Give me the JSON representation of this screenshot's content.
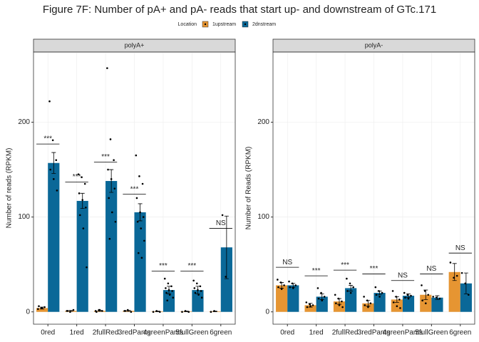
{
  "figure": {
    "title": "Figure 7F: Number of pA+ and pA- reads that start up- and downstream of GTc.171",
    "legend_title": "Location"
  },
  "chart_data": [
    {
      "type": "bar",
      "title": "polyA+",
      "y_label": "Number of reads (RPKM)",
      "categories": [
        "0red",
        "1red",
        "2fullRed",
        "3redPants",
        "4greenPants",
        "5fullGreen",
        "6green"
      ],
      "ylim": [
        -13,
        274
      ],
      "yticks": [
        0,
        100,
        200
      ],
      "grid": true,
      "series": [
        {
          "name": "1upstream",
          "color": "#e69532",
          "values": [
            4,
            1,
            1,
            1,
            0.5,
            0.5,
            0.5
          ],
          "errors": [
            1,
            0.5,
            0.5,
            0.5,
            0.3,
            0.3,
            0.3
          ],
          "points": [
            [
              3,
              4,
              5,
              6,
              4
            ],
            [
              1,
              0,
              2,
              1
            ],
            [
              1,
              2,
              1,
              0,
              2
            ],
            [
              1,
              2,
              0,
              1
            ],
            [
              0,
              1,
              0
            ],
            [
              0,
              1,
              0
            ],
            [
              0,
              1
            ]
          ]
        },
        {
          "name": "2dnstream",
          "color": "#0a6898",
          "values": [
            157,
            117,
            138,
            105,
            23,
            23,
            68
          ],
          "errors": [
            11,
            8,
            12,
            9,
            4,
            4,
            33
          ],
          "points": [
            [
              222,
              181,
              160,
              150,
              140,
              128
            ],
            [
              145,
              142,
              135,
              125,
              118,
              110,
              102,
              88,
              47
            ],
            [
              257,
              182,
              160,
              150,
              140,
              130,
              120,
              105,
              95,
              77
            ],
            [
              165,
              143,
              135,
              120,
              105,
              100,
              95,
              88,
              75,
              62,
              57
            ],
            [
              35,
              30,
              27,
              25,
              23,
              22,
              20,
              18,
              15,
              12
            ],
            [
              33,
              30,
              27,
              25,
              23,
              22,
              20,
              18,
              15
            ],
            [
              102,
              37
            ]
          ]
        }
      ],
      "significance": {
        "labels": [
          "***",
          "***",
          "***",
          "***",
          "***",
          "***",
          "NS"
        ],
        "heights": [
          177,
          137,
          158,
          124,
          43,
          43,
          88
        ]
      }
    },
    {
      "type": "bar",
      "title": "polyA-",
      "y_label": "Number of Reads (RPKM)",
      "categories": [
        "0red",
        "1red",
        "2fullRed",
        "3redPants",
        "4greenPants",
        "5fullGreen",
        "6green"
      ],
      "ylim": [
        -13,
        274
      ],
      "yticks": [
        0,
        100,
        200
      ],
      "grid": true,
      "series": [
        {
          "name": "1upstream",
          "color": "#e69532",
          "values": [
            28,
            7,
            11,
            9,
            13,
            18,
            42
          ],
          "errors": [
            3,
            2,
            3,
            3,
            3,
            5,
            9
          ],
          "points": [
            [
              34,
              31,
              28,
              26,
              24
            ],
            [
              10,
              8,
              7,
              5,
              6
            ],
            [
              18,
              14,
              11,
              9,
              7,
              5
            ],
            [
              16,
              12,
              9,
              7,
              5
            ],
            [
              22,
              16,
              13,
              10,
              6,
              4
            ],
            [
              28,
              22,
              18,
              12,
              9
            ],
            [
              52,
              36,
              38
            ]
          ]
        },
        {
          "name": "2dnstream",
          "color": "#0a6898",
          "values": [
            28,
            16,
            25,
            20,
            17,
            15,
            30
          ],
          "errors": [
            2,
            3,
            3,
            2,
            2,
            2,
            11
          ],
          "points": [
            [
              32,
              30,
              28,
              26,
              25
            ],
            [
              25,
              20,
              16,
              14,
              12
            ],
            [
              35,
              30,
              26,
              22,
              20
            ],
            [
              26,
              22,
              20,
              18,
              16
            ],
            [
              20,
              18,
              17,
              15,
              14
            ],
            [
              16,
              15,
              14
            ],
            [
              41,
              30,
              18
            ]
          ]
        }
      ],
      "significance": {
        "labels": [
          "NS",
          "***",
          "***",
          "***",
          "NS",
          "NS",
          "NS"
        ],
        "heights": [
          47,
          38,
          44,
          40,
          33,
          40,
          62
        ]
      }
    }
  ]
}
